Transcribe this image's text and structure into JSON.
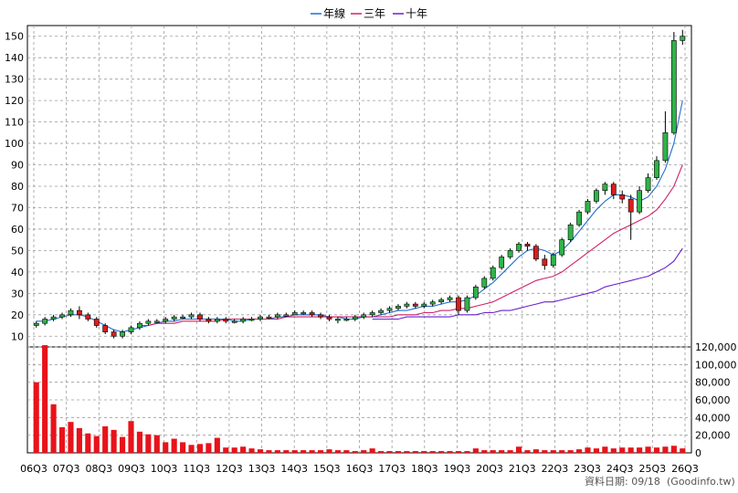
{
  "chart_data": [
    {
      "type": "line",
      "chart_kind": "candlestick",
      "legend": [
        {
          "name": "年線",
          "color": "#1f6fd0"
        },
        {
          "name": "三年",
          "color": "#d0206a"
        },
        {
          "name": "十年",
          "color": "#6a1fd0"
        }
      ],
      "legend_placement": "top-center",
      "grid": true,
      "ylim": [
        5,
        155
      ],
      "y_ticks": [
        10,
        20,
        30,
        40,
        50,
        60,
        70,
        80,
        90,
        100,
        110,
        120,
        130,
        140,
        150
      ],
      "x_ticks": [
        "06Q3",
        "07Q3",
        "08Q3",
        "09Q3",
        "10Q3",
        "11Q3",
        "12Q3",
        "13Q3",
        "14Q3",
        "15Q3",
        "16Q3",
        "17Q3",
        "18Q3",
        "19Q3",
        "20Q3",
        "21Q3",
        "22Q3",
        "23Q3",
        "24Q3",
        "25Q3",
        "26Q3"
      ],
      "up_color": "#2fb34a",
      "down_color": "#d81e1e",
      "candles": [
        [
          15,
          16,
          17,
          14
        ],
        [
          16,
          18,
          19,
          15
        ],
        [
          18,
          19,
          20,
          17
        ],
        [
          19,
          20,
          21,
          18
        ],
        [
          20,
          22,
          23,
          19
        ],
        [
          22,
          20,
          24,
          18
        ],
        [
          20,
          18,
          21,
          17
        ],
        [
          18,
          15,
          19,
          14
        ],
        [
          15,
          12,
          16,
          11
        ],
        [
          12,
          10,
          13,
          9
        ],
        [
          10,
          12,
          13,
          9
        ],
        [
          12,
          14,
          15,
          11
        ],
        [
          14,
          16,
          17,
          13
        ],
        [
          16,
          17,
          18,
          15
        ],
        [
          17,
          17,
          18,
          16
        ],
        [
          17,
          18,
          19,
          16
        ],
        [
          18,
          19,
          20,
          17
        ],
        [
          19,
          19,
          20,
          18
        ],
        [
          19,
          20,
          21,
          18
        ],
        [
          20,
          18,
          21,
          17
        ],
        [
          18,
          17,
          19,
          16
        ],
        [
          17,
          18,
          19,
          16
        ],
        [
          18,
          17,
          19,
          16
        ],
        [
          17,
          17,
          18,
          16
        ],
        [
          17,
          18,
          19,
          16
        ],
        [
          18,
          18,
          19,
          17
        ],
        [
          18,
          19,
          20,
          17
        ],
        [
          19,
          19,
          20,
          18
        ],
        [
          19,
          20,
          21,
          18
        ],
        [
          20,
          20,
          21,
          19
        ],
        [
          20,
          21,
          22,
          20
        ],
        [
          21,
          21,
          22,
          20
        ],
        [
          21,
          20,
          22,
          19
        ],
        [
          20,
          19,
          21,
          18
        ],
        [
          19,
          18,
          20,
          17
        ],
        [
          18,
          18,
          19,
          16
        ],
        [
          18,
          18,
          19,
          17
        ],
        [
          18,
          19,
          20,
          17
        ],
        [
          19,
          20,
          21,
          18
        ],
        [
          20,
          21,
          22,
          19
        ],
        [
          21,
          22,
          23,
          20
        ],
        [
          22,
          23,
          24,
          21
        ],
        [
          23,
          24,
          25,
          22
        ],
        [
          24,
          25,
          26,
          23
        ],
        [
          25,
          24,
          26,
          23
        ],
        [
          24,
          25,
          26,
          23
        ],
        [
          25,
          26,
          27,
          24
        ],
        [
          26,
          27,
          28,
          25
        ],
        [
          27,
          28,
          29,
          26
        ],
        [
          28,
          22,
          29,
          20
        ],
        [
          22,
          28,
          29,
          21
        ],
        [
          28,
          33,
          34,
          27
        ],
        [
          33,
          37,
          38,
          32
        ],
        [
          37,
          42,
          43,
          36
        ],
        [
          42,
          47,
          48,
          41
        ],
        [
          47,
          50,
          51,
          46
        ],
        [
          50,
          53,
          54,
          49
        ],
        [
          53,
          52,
          54,
          50
        ],
        [
          52,
          46,
          53,
          45
        ],
        [
          46,
          43,
          48,
          41
        ],
        [
          43,
          48,
          49,
          42
        ],
        [
          48,
          55,
          56,
          47
        ],
        [
          55,
          62,
          63,
          54
        ],
        [
          62,
          68,
          69,
          61
        ],
        [
          68,
          73,
          74,
          67
        ],
        [
          73,
          78,
          79,
          72
        ],
        [
          78,
          81,
          82,
          76
        ],
        [
          81,
          76,
          82,
          74
        ],
        [
          76,
          74,
          78,
          72
        ],
        [
          74,
          68,
          76,
          55
        ],
        [
          68,
          78,
          80,
          67
        ],
        [
          78,
          84,
          86,
          77
        ],
        [
          84,
          92,
          94,
          83
        ],
        [
          92,
          105,
          115,
          91
        ],
        [
          105,
          148,
          152,
          104
        ],
        [
          148,
          150,
          153,
          146
        ]
      ],
      "series": [
        {
          "name": "年線",
          "values": [
            17,
            17,
            18,
            19,
            20,
            20,
            19,
            17,
            15,
            13,
            12,
            13,
            14,
            15,
            16,
            17,
            17,
            18,
            18,
            18,
            18,
            18,
            18,
            17,
            17,
            18,
            18,
            18,
            19,
            19,
            20,
            20,
            20,
            20,
            19,
            19,
            18,
            18,
            19,
            19,
            20,
            21,
            22,
            22,
            23,
            24,
            24,
            25,
            26,
            26,
            27,
            29,
            32,
            35,
            39,
            43,
            47,
            50,
            51,
            50,
            48,
            50,
            54,
            59,
            64,
            69,
            73,
            76,
            76,
            75,
            73,
            75,
            80,
            88,
            100,
            120
          ]
        },
        {
          "name": "三年",
          "values": [
            null,
            null,
            null,
            null,
            null,
            null,
            null,
            null,
            null,
            null,
            null,
            null,
            15,
            15,
            16,
            16,
            16,
            17,
            17,
            17,
            17,
            17,
            18,
            18,
            18,
            18,
            18,
            18,
            18,
            19,
            19,
            19,
            19,
            19,
            19,
            19,
            19,
            19,
            19,
            19,
            19,
            19,
            20,
            20,
            20,
            21,
            21,
            22,
            22,
            23,
            23,
            24,
            25,
            26,
            28,
            30,
            32,
            34,
            36,
            37,
            38,
            40,
            43,
            46,
            49,
            52,
            55,
            58,
            60,
            62,
            64,
            66,
            69,
            74,
            80,
            90
          ]
        },
        {
          "name": "十年",
          "values": [
            null,
            null,
            null,
            null,
            null,
            null,
            null,
            null,
            null,
            null,
            null,
            null,
            null,
            null,
            null,
            null,
            null,
            null,
            null,
            null,
            null,
            null,
            null,
            null,
            null,
            null,
            null,
            null,
            null,
            null,
            null,
            null,
            null,
            null,
            null,
            null,
            null,
            null,
            null,
            18,
            18,
            18,
            18,
            19,
            19,
            19,
            19,
            19,
            19,
            20,
            20,
            20,
            21,
            21,
            22,
            22,
            23,
            24,
            25,
            26,
            26,
            27,
            28,
            29,
            30,
            31,
            33,
            34,
            35,
            36,
            37,
            38,
            40,
            42,
            45,
            51
          ]
        }
      ]
    },
    {
      "type": "bar",
      "name": "volume",
      "color": "#e8131a",
      "ylim": [
        0,
        120000
      ],
      "y_ticks": [
        "0",
        "20,000",
        "40,000",
        "60,000",
        "80,000",
        "100,000",
        "120,000"
      ],
      "values": [
        80000,
        122000,
        55000,
        29000,
        35000,
        28000,
        22000,
        19000,
        30000,
        26000,
        18000,
        36000,
        24000,
        21000,
        20000,
        12000,
        16000,
        12000,
        9000,
        10000,
        11000,
        17000,
        6000,
        6000,
        7000,
        5000,
        4000,
        3000,
        3000,
        3000,
        3000,
        3000,
        3000,
        3000,
        4000,
        3000,
        3000,
        2000,
        3000,
        5000,
        2000,
        2000,
        2000,
        2000,
        2000,
        2000,
        2000,
        2000,
        2000,
        2000,
        2000,
        5000,
        3000,
        3000,
        3000,
        3000,
        7000,
        3000,
        4000,
        3000,
        3000,
        3000,
        3000,
        4000,
        6000,
        5000,
        7000,
        5000,
        6000,
        6000,
        6000,
        7000,
        6000,
        7000,
        8000,
        5000
      ]
    }
  ],
  "footer": {
    "label": "資料日期: 09/18",
    "source": "(Goodinfo.tw)"
  }
}
